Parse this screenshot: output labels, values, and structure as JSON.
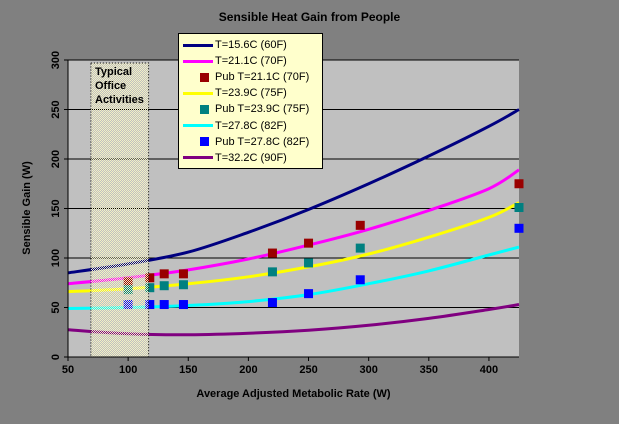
{
  "chart_data": {
    "type": "line+scatter",
    "title": "Sensible Heat Gain from People",
    "xlabel": "Average Adjusted Metabolic Rate (W)",
    "ylabel": "Sensible Gain (W)",
    "xlim": [
      50,
      425
    ],
    "ylim": [
      0,
      300
    ],
    "x_ticks": [
      50,
      100,
      150,
      200,
      250,
      300,
      350,
      400
    ],
    "y_ticks": [
      0,
      50,
      100,
      150,
      200,
      250,
      300
    ],
    "grid": "horizontal-only",
    "legend_position": "overlay-top-left",
    "annotation_band": {
      "label": "Typical Office Activities",
      "x_start": 69,
      "x_end": 117,
      "style": "checker-hatch-over-series",
      "fill": "#F2F0C4",
      "border": "dotted-black"
    },
    "series": [
      {
        "name": "T=15.6C (60F)",
        "type": "line",
        "color": "#000080",
        "x": [
          50,
          100,
          150,
          200,
          250,
          300,
          350,
          400,
          425
        ],
        "y": [
          85,
          94,
          106,
          126,
          149,
          175,
          203,
          233,
          250
        ]
      },
      {
        "name": "T=21.1C (70F)",
        "type": "line",
        "color": "#FF00FF",
        "x": [
          50,
          100,
          150,
          200,
          250,
          300,
          350,
          400,
          425
        ],
        "y": [
          74,
          80,
          88,
          99,
          113,
          129,
          148,
          170,
          189
        ]
      },
      {
        "name": "Pub T=21.1C (70F)",
        "type": "scatter",
        "color": "#990000",
        "x": [
          100,
          118,
          130,
          146,
          220,
          250,
          293,
          425
        ],
        "y": [
          76,
          80,
          84,
          84,
          105,
          115,
          133,
          175
        ]
      },
      {
        "name": "T=23.9C (75F)",
        "type": "line",
        "color": "#FFFF00",
        "x": [
          50,
          100,
          150,
          200,
          250,
          300,
          350,
          400,
          425
        ],
        "y": [
          66,
          69,
          74,
          81,
          91,
          104,
          121,
          141,
          156
        ]
      },
      {
        "name": "Pub T=23.9C (75F)",
        "type": "scatter",
        "color": "#008080",
        "x": [
          100,
          118,
          130,
          146,
          220,
          250,
          293,
          425
        ],
        "y": [
          68,
          70,
          72,
          73,
          86,
          95,
          110,
          151
        ]
      },
      {
        "name": "T=27.8C (82F)",
        "type": "line",
        "color": "#00FFFF",
        "x": [
          50,
          100,
          150,
          200,
          250,
          300,
          350,
          400,
          425
        ],
        "y": [
          49,
          50,
          52,
          56,
          63,
          74,
          87,
          103,
          111
        ]
      },
      {
        "name": "Pub T=27.8C (82F)",
        "type": "scatter",
        "color": "#0000FF",
        "x": [
          100,
          118,
          130,
          146,
          220,
          250,
          293,
          425
        ],
        "y": [
          53,
          53,
          53,
          53,
          55,
          64,
          78,
          130
        ]
      },
      {
        "name": "T=32.2C (90F)",
        "type": "line",
        "color": "#800080",
        "x": [
          50,
          100,
          150,
          200,
          250,
          300,
          350,
          400,
          425
        ],
        "y": [
          27.5,
          23.5,
          22.5,
          24,
          27,
          32,
          39,
          48,
          53
        ]
      }
    ]
  },
  "colors": {
    "chart_background": "#808080",
    "plot_background": "#C0C0C0",
    "legend_background": "#FFFFCC",
    "gridline": "#000000",
    "text": "#000000"
  }
}
